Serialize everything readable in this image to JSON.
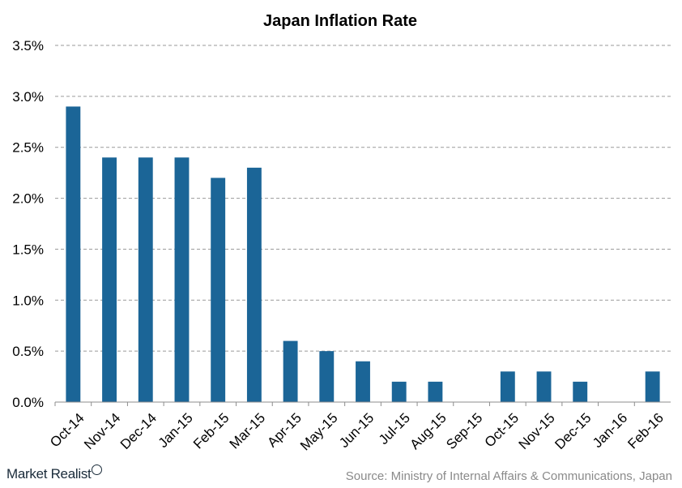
{
  "chart_data": {
    "type": "bar",
    "title": "Japan Inflation Rate",
    "xlabel": "",
    "ylabel": "",
    "categories": [
      "Oct-14",
      "Nov-14",
      "Dec-14",
      "Jan-15",
      "Feb-15",
      "Mar-15",
      "Apr-15",
      "May-15",
      "Jun-15",
      "Jul-15",
      "Aug-15",
      "Sep-15",
      "Oct-15",
      "Nov-15",
      "Dec-15",
      "Jan-16",
      "Feb-16"
    ],
    "values": [
      2.9,
      2.4,
      2.4,
      2.4,
      2.2,
      2.3,
      0.6,
      0.5,
      0.4,
      0.2,
      0.2,
      0.0,
      0.3,
      0.3,
      0.2,
      0.0,
      0.3
    ],
    "ylim": [
      0,
      3.5
    ],
    "yticks": [
      "0.0%",
      "0.5%",
      "1.0%",
      "1.5%",
      "2.0%",
      "2.5%",
      "3.0%",
      "3.5%"
    ],
    "grid": true,
    "bar_color": "#1b6597"
  },
  "footer": {
    "brand": "Market Realist",
    "brand_icon": "magnifier-icon",
    "source": "Source: Ministry of Internal Affairs & Communications, Japan"
  }
}
